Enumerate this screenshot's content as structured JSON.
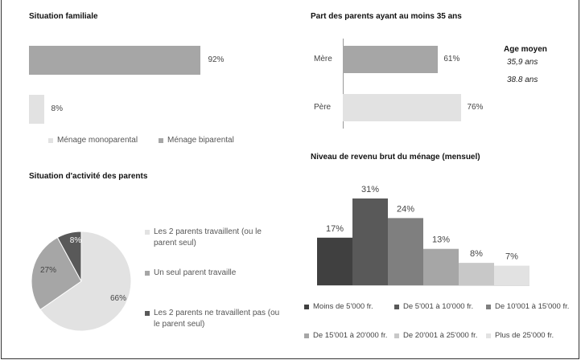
{
  "chart_data": [
    {
      "type": "bar",
      "title": "Situation familiale",
      "orientation": "horizontal",
      "categories": [
        "Ménage biparental",
        "Ménage monoparental"
      ],
      "values": [
        92,
        8
      ],
      "unit": "%",
      "colors": [
        "#a6a6a6",
        "#e2e2e2"
      ],
      "legend": [
        "Ménage monoparental",
        "Ménage biparental"
      ],
      "legend_colors": [
        "#e2e2e2",
        "#a6a6a6"
      ]
    },
    {
      "type": "bar",
      "title": "Part des parents ayant au moins 35 ans",
      "orientation": "horizontal",
      "categories": [
        "Mère",
        "Père"
      ],
      "values": [
        61,
        76
      ],
      "unit": "%",
      "colors": [
        "#a6a6a6",
        "#e2e2e2"
      ],
      "side_title": "Age moyen",
      "side_values": [
        "35,9 ans",
        "38.8 ans"
      ]
    },
    {
      "type": "pie",
      "title": "Situation d'activité des parents",
      "categories": [
        "Les 2 parents travaillent (ou le parent seul)",
        "Un seul parent travaille",
        "Les 2 parents ne travaillent pas (ou le parent seul)"
      ],
      "values": [
        66,
        27,
        8
      ],
      "unit": "%",
      "colors": [
        "#e2e2e2",
        "#a6a6a6",
        "#595959"
      ]
    },
    {
      "type": "bar",
      "title": "Niveau de revenu brut du ménage (mensuel)",
      "categories": [
        "Moins de 5'000 fr.",
        "De 5'001 à 10'000 fr.",
        "De 10'001 à 15'000 fr.",
        "De 15'001 à 20'000 fr.",
        "De 20'001 à 25'000 fr.",
        "Plus de 25'000 fr."
      ],
      "values": [
        17,
        31,
        24,
        13,
        8,
        7
      ],
      "unit": "%",
      "colors": [
        "#404040",
        "#595959",
        "#7f7f7f",
        "#a6a6a6",
        "#c8c8c8",
        "#e2e2e2"
      ]
    }
  ]
}
